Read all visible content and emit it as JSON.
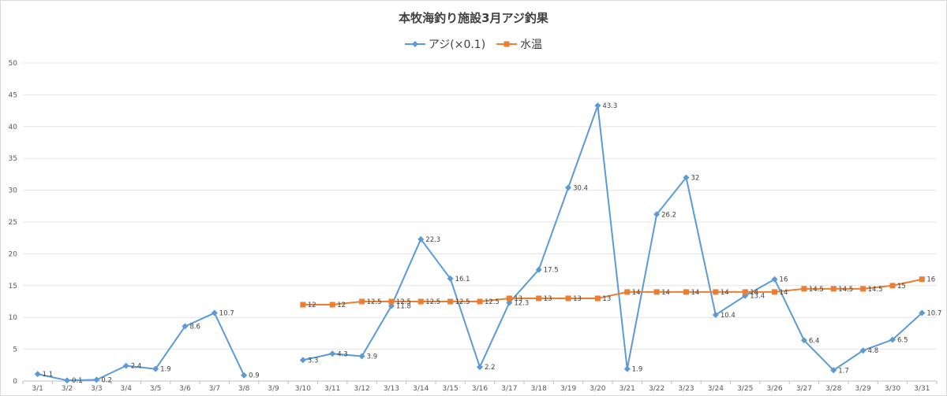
{
  "chart_data": {
    "type": "line",
    "title": "本牧海釣り施設3月アジ釣果",
    "categories": [
      "3/1",
      "3/2",
      "3/3",
      "3/4",
      "3/5",
      "3/6",
      "3/7",
      "3/8",
      "3/9",
      "3/10",
      "3/11",
      "3/12",
      "3/13",
      "3/14",
      "3/15",
      "3/16",
      "3/17",
      "3/18",
      "3/19",
      "3/20",
      "3/21",
      "3/22",
      "3/23",
      "3/24",
      "3/25",
      "3/26",
      "3/27",
      "3/28",
      "3/29",
      "3/30",
      "3/31"
    ],
    "ylim": [
      0,
      50
    ],
    "yticks": [
      0,
      5,
      10,
      15,
      20,
      25,
      30,
      35,
      40,
      45,
      50
    ],
    "grid": true,
    "legend_position": "top",
    "series": [
      {
        "name": "アジ(×0.1)",
        "color": "#5b9bd5",
        "marker": "diamond",
        "values": [
          1.1,
          0.1,
          0.2,
          2.4,
          1.9,
          8.6,
          10.7,
          0.9,
          null,
          3.3,
          4.3,
          3.9,
          11.8,
          22.3,
          16.1,
          2.2,
          12.3,
          17.5,
          30.4,
          43.3,
          1.9,
          26.2,
          32,
          10.4,
          13.4,
          16,
          6.4,
          1.7,
          4.8,
          6.5,
          10.7
        ]
      },
      {
        "name": "水温",
        "color": "#ed7d31",
        "marker": "square",
        "values": [
          null,
          null,
          null,
          null,
          null,
          null,
          null,
          null,
          null,
          12,
          12,
          12.5,
          12.5,
          12.5,
          12.5,
          12.5,
          13,
          13,
          13,
          13,
          14,
          14,
          14,
          14,
          14,
          14,
          14.5,
          14.5,
          14.5,
          15,
          16
        ]
      }
    ]
  }
}
